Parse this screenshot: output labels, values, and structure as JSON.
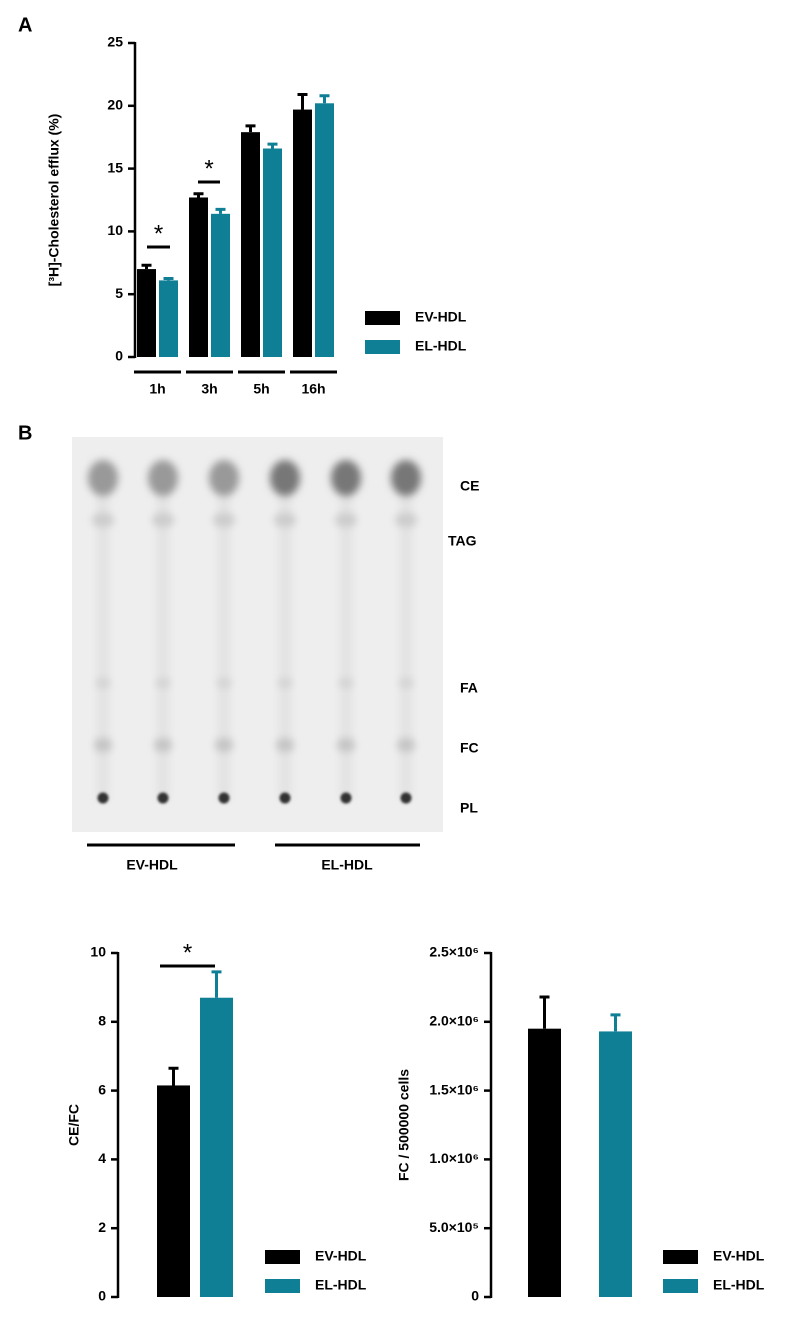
{
  "panel_labels": [
    "A",
    "B"
  ],
  "tlc": {
    "bands": [
      "CE",
      "TAG",
      "FA",
      "FC",
      "PL"
    ],
    "groups": [
      "EV-HDL",
      "EL-HDL"
    ]
  },
  "chart_data": [
    {
      "type": "bar",
      "ylabel": "[³H]-Cholesterol efflux (%)",
      "categories": [
        "1h",
        "3h",
        "5h",
        "16h"
      ],
      "series": [
        {
          "name": "EV-HDL",
          "color": "#000000",
          "values": [
            7.0,
            12.7,
            17.9,
            19.7
          ],
          "errors": [
            0.3,
            0.3,
            0.5,
            1.2
          ]
        },
        {
          "name": "EL-HDL",
          "color": "#0f7f96",
          "values": [
            6.1,
            11.4,
            16.6,
            20.2
          ],
          "errors": [
            0.15,
            0.35,
            0.35,
            0.6
          ]
        }
      ],
      "ylim": [
        0,
        25
      ],
      "yticks": [
        0,
        5,
        10,
        15,
        20,
        25
      ],
      "annotations": [
        "*",
        "*"
      ]
    },
    {
      "type": "bar",
      "ylabel": "CE/FC",
      "categories": [
        null
      ],
      "series": [
        {
          "name": "EV-HDL",
          "color": "#000000",
          "values": [
            6.15
          ],
          "errors": [
            0.5
          ]
        },
        {
          "name": "EL-HDL",
          "color": "#0f7f96",
          "values": [
            8.7
          ],
          "errors": [
            0.75
          ]
        }
      ],
      "ylim": [
        0,
        10
      ],
      "yticks": [
        0,
        2,
        4,
        6,
        8,
        10
      ],
      "annotations": [
        "*"
      ]
    },
    {
      "type": "bar",
      "ylabel": "FC / 500000 cells",
      "categories": [
        null
      ],
      "series": [
        {
          "name": "EV-HDL",
          "color": "#000000",
          "values": [
            1950000
          ],
          "errors": [
            230000
          ]
        },
        {
          "name": "EL-HDL",
          "color": "#0f7f96",
          "values": [
            1930000
          ],
          "errors": [
            120000
          ]
        }
      ],
      "ylim": [
        0,
        2500000
      ],
      "yticks": [
        0,
        {
          "value": 500000,
          "label": "5.0×10⁵"
        },
        {
          "value": 1000000,
          "label": "1.0×10⁶"
        },
        {
          "value": 1500000,
          "label": "1.5×10⁶"
        },
        {
          "value": 2000000,
          "label": "2.0×10⁶"
        },
        {
          "value": 2500000,
          "label": "2.5×10⁶"
        }
      ],
      "annotations": []
    }
  ]
}
